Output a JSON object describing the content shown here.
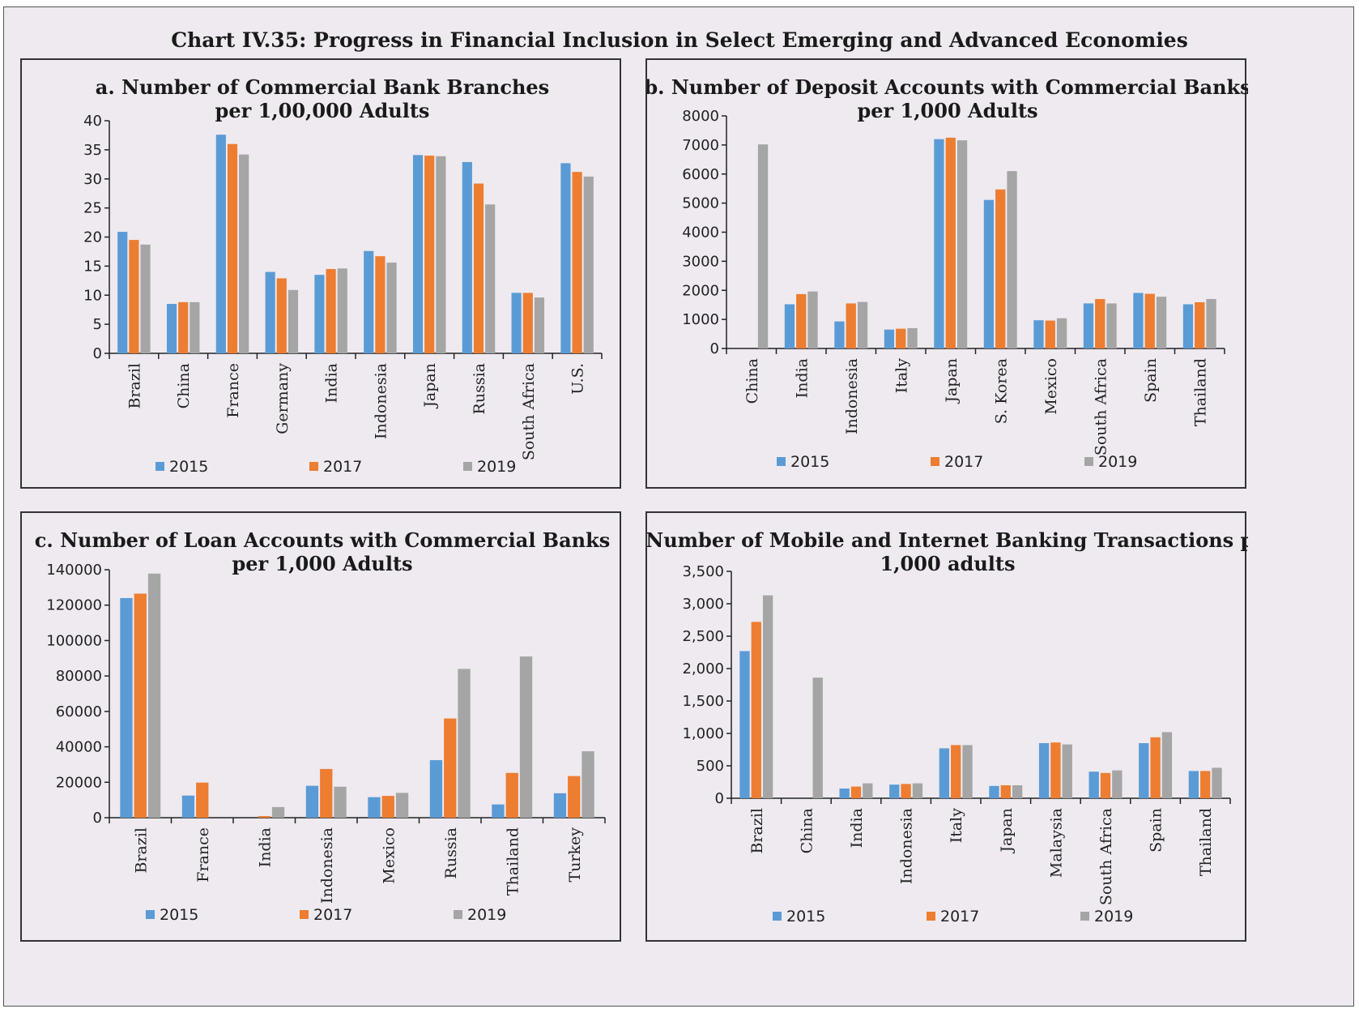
{
  "title": "Chart IV.35: Progress in Financial Inclusion in Select Emerging and Advanced Economies",
  "colors": {
    "2015": "#5b9bd5",
    "2017": "#ed7d31",
    "2019": "#a5a5a5"
  },
  "chart_data": [
    {
      "id": "a",
      "type": "bar",
      "title_lines": [
        "a. Number of Commercial Bank Branches",
        "per 1,00,000 Adults"
      ],
      "categories": [
        "Brazil",
        "China",
        "France",
        "Germany",
        "India",
        "Indonesia",
        "Japan",
        "Russia",
        "South Africa",
        "U.S."
      ],
      "series": [
        {
          "name": "2015",
          "values": [
            20.9,
            8.5,
            37.6,
            14.0,
            13.5,
            17.6,
            34.1,
            32.9,
            10.4,
            32.7
          ]
        },
        {
          "name": "2017",
          "values": [
            19.5,
            8.8,
            36.0,
            12.9,
            14.5,
            16.7,
            34.0,
            29.2,
            10.4,
            31.2
          ]
        },
        {
          "name": "2019",
          "values": [
            18.7,
            8.8,
            34.2,
            10.9,
            14.6,
            15.6,
            33.9,
            25.6,
            9.6,
            30.4
          ]
        }
      ],
      "ylim": [
        0,
        40
      ],
      "yticks": [
        0,
        5,
        10,
        15,
        20,
        25,
        30,
        35,
        40
      ],
      "ytick_labels": [
        "0",
        "5",
        "10",
        "15",
        "20",
        "25",
        "30",
        "35",
        "40"
      ],
      "legend_position": "bottom"
    },
    {
      "id": "b",
      "type": "bar",
      "title_lines": [
        "b. Number of Deposit Accounts with Commercial Banks",
        "per 1,000 Adults"
      ],
      "categories": [
        "China",
        "India",
        "Indonesia",
        "Italy",
        "Japan",
        "S. Korea",
        "Mexico",
        "South Africa",
        "Spain",
        "Thailand"
      ],
      "series": [
        {
          "name": "2015",
          "values": [
            null,
            1520,
            930,
            650,
            7200,
            5110,
            970,
            1550,
            1910,
            1520
          ]
        },
        {
          "name": "2017",
          "values": [
            null,
            1870,
            1550,
            680,
            7250,
            5470,
            960,
            1700,
            1880,
            1590
          ]
        },
        {
          "name": "2019",
          "values": [
            7020,
            1960,
            1600,
            700,
            7160,
            6100,
            1040,
            1550,
            1780,
            1700
          ]
        }
      ],
      "ylim": [
        0,
        8000
      ],
      "yticks": [
        0,
        1000,
        2000,
        3000,
        4000,
        5000,
        6000,
        7000,
        8000
      ],
      "ytick_labels": [
        "0",
        "1000",
        "2000",
        "3000",
        "4000",
        "5000",
        "6000",
        "7000",
        "8000"
      ],
      "legend_position": "bottom"
    },
    {
      "id": "c",
      "type": "bar",
      "title_lines": [
        "c. Number of Loan Accounts with Commercial Banks",
        "per 1,000 Adults"
      ],
      "categories": [
        "Brazil",
        "France",
        "India",
        "Indonesia",
        "Mexico",
        "Russia",
        "Thailand",
        "Turkey"
      ],
      "series": [
        {
          "name": "2015",
          "values": [
            124000,
            12500,
            null,
            18000,
            11600,
            32500,
            7500,
            13800
          ]
        },
        {
          "name": "2017",
          "values": [
            126500,
            19800,
            900,
            27500,
            12300,
            56000,
            25300,
            23500
          ]
        },
        {
          "name": "2019",
          "values": [
            137800,
            null,
            6000,
            17500,
            14000,
            84000,
            91000,
            37500
          ]
        }
      ],
      "ylim": [
        0,
        140000
      ],
      "yticks": [
        0,
        20000,
        40000,
        60000,
        80000,
        100000,
        120000,
        140000
      ],
      "ytick_labels": [
        "0",
        "20000",
        "40000",
        "60000",
        "80000",
        "100000",
        "120000",
        "140000"
      ],
      "legend_position": "bottom"
    },
    {
      "id": "d",
      "type": "bar",
      "title_lines": [
        "d. Number of Mobile and Internet Banking Transactions per",
        "1,000 adults"
      ],
      "categories": [
        "Brazil",
        "China",
        "India",
        "Indonesia",
        "Italy",
        "Japan",
        "Malaysia",
        "South Africa",
        "Spain",
        "Thailand"
      ],
      "series": [
        {
          "name": "2015",
          "values": [
            2270,
            null,
            150,
            210,
            770,
            190,
            850,
            410,
            850,
            420
          ]
        },
        {
          "name": "2017",
          "values": [
            2720,
            null,
            180,
            220,
            820,
            200,
            860,
            390,
            940,
            420
          ]
        },
        {
          "name": "2019",
          "values": [
            3130,
            1860,
            230,
            230,
            820,
            200,
            830,
            430,
            1020,
            470
          ]
        }
      ],
      "ylim": [
        0,
        3500
      ],
      "yticks": [
        0,
        500,
        1000,
        1500,
        2000,
        2500,
        3000,
        3500
      ],
      "ytick_labels": [
        "0",
        "500",
        "1,000",
        "1,500",
        "2,000",
        "2,500",
        "3,000",
        "3,500"
      ],
      "legend_position": "bottom"
    }
  ]
}
